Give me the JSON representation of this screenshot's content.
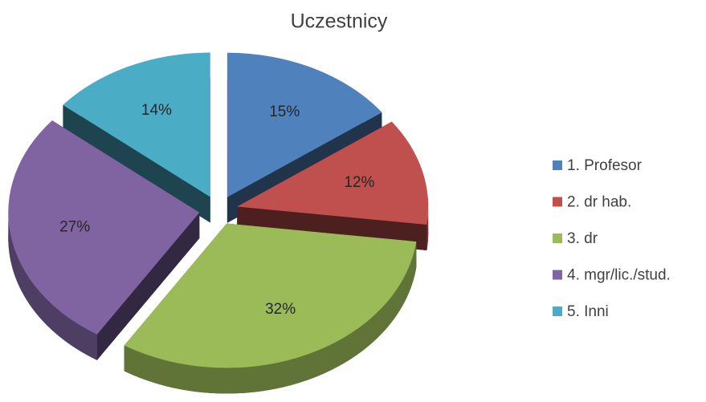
{
  "chart_data": {
    "type": "pie",
    "title": "Uczestnicy",
    "categories": [
      "1. Profesor",
      "2. dr hab.",
      "3. dr",
      "4. mgr/lic./stud.",
      "5. Inni"
    ],
    "values": [
      15,
      12,
      32,
      27,
      14
    ],
    "value_labels": [
      "15%",
      "12%",
      "32%",
      "27%",
      "14%"
    ],
    "colors": [
      "#4f81bd",
      "#c0504d",
      "#9bbb59",
      "#8064a2",
      "#4bacc6"
    ],
    "legend": "right"
  }
}
